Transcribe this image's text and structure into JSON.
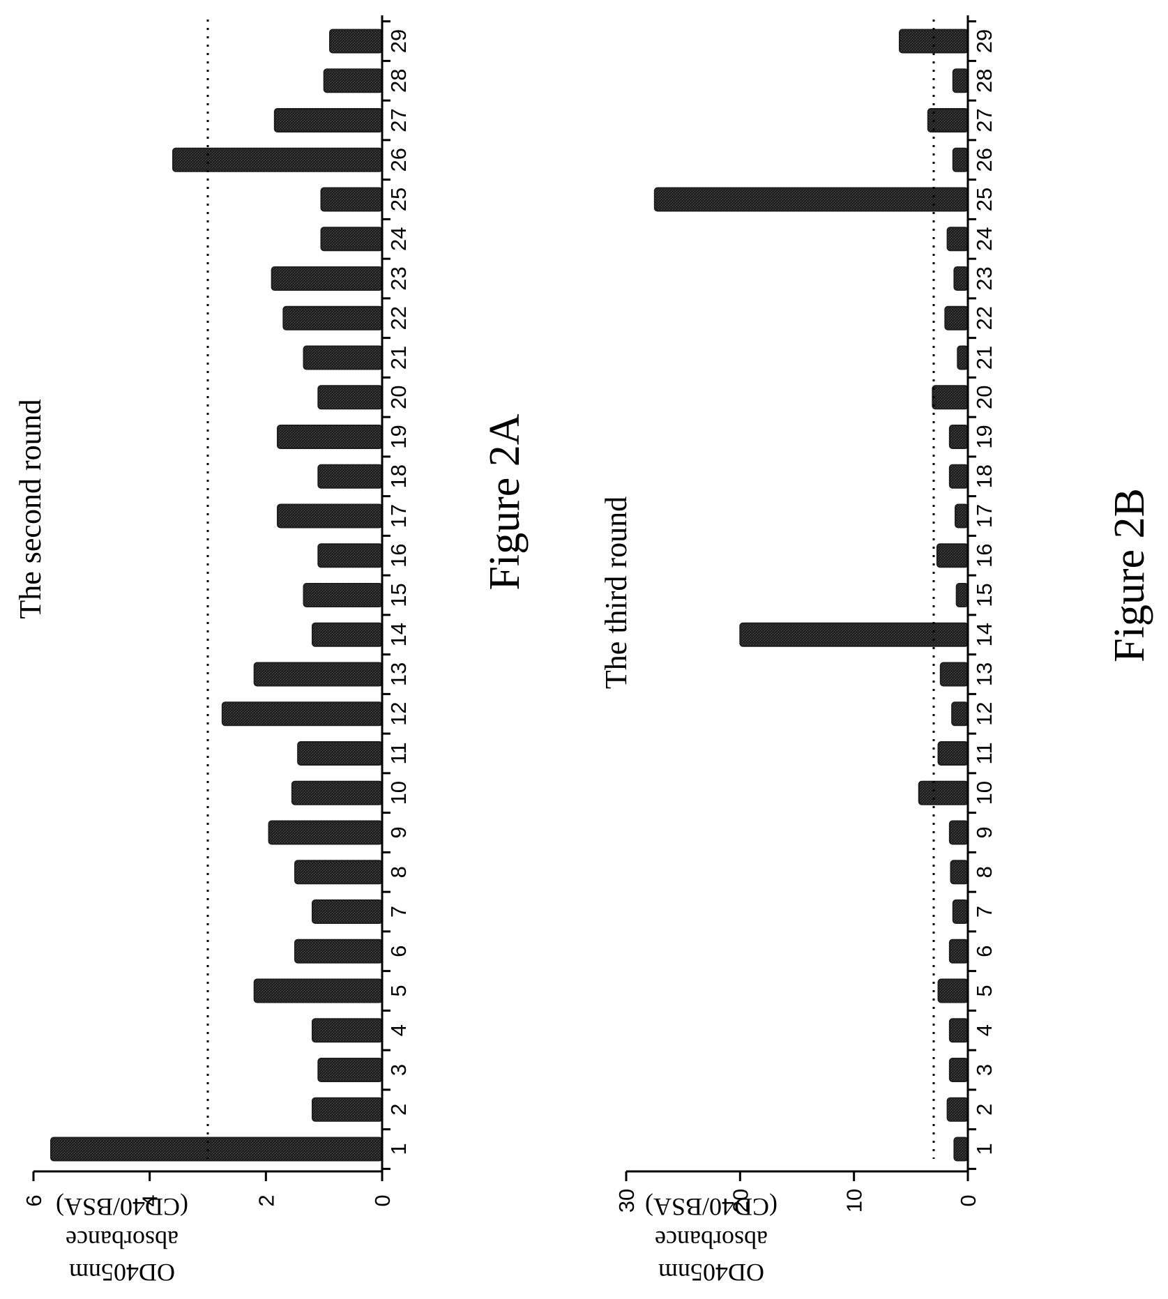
{
  "chart_data": [
    {
      "type": "bar",
      "title": "The second round",
      "caption": "Figure 2A",
      "ylabel_lines": [
        "OD405nm",
        "absorbance",
        "(CD40/BSA)"
      ],
      "categories": [
        "1",
        "2",
        "3",
        "4",
        "5",
        "6",
        "7",
        "8",
        "9",
        "10",
        "11",
        "12",
        "13",
        "14",
        "15",
        "16",
        "17",
        "18",
        "19",
        "20",
        "21",
        "22",
        "23",
        "24",
        "25",
        "26",
        "27",
        "28",
        "29"
      ],
      "values": [
        5.7,
        1.2,
        1.1,
        1.2,
        2.2,
        1.5,
        1.2,
        1.5,
        1.95,
        1.55,
        1.45,
        2.75,
        2.2,
        1.2,
        1.35,
        1.1,
        1.8,
        1.1,
        1.8,
        1.1,
        1.35,
        1.7,
        1.9,
        1.05,
        1.05,
        3.6,
        1.85,
        1.0,
        0.9
      ],
      "ylim": [
        0,
        6
      ],
      "yticks": [
        "0",
        "2",
        "4",
        "6"
      ],
      "threshold": 3,
      "bar_color": "#1e1e1e",
      "orientation": "rotated 90° clockwise"
    },
    {
      "type": "bar",
      "title": "The third round",
      "caption": "Figure 2B",
      "ylabel_lines": [
        "OD405nm",
        "absorbance",
        "(CD40/BSA)"
      ],
      "categories": [
        "1",
        "2",
        "3",
        "4",
        "5",
        "6",
        "7",
        "8",
        "9",
        "10",
        "11",
        "12",
        "13",
        "14",
        "15",
        "16",
        "17",
        "18",
        "19",
        "20",
        "21",
        "22",
        "23",
        "24",
        "25",
        "26",
        "27",
        "28",
        "29"
      ],
      "values": [
        1.2,
        1.8,
        1.6,
        1.6,
        2.6,
        1.6,
        1.3,
        1.5,
        1.6,
        4.3,
        2.6,
        1.4,
        2.4,
        20.0,
        1.0,
        2.7,
        1.1,
        1.6,
        1.6,
        3.1,
        0.9,
        2.0,
        1.2,
        1.8,
        27.5,
        1.3,
        3.5,
        1.3,
        6.0
      ],
      "ylim": [
        0,
        30
      ],
      "yticks": [
        "0",
        "10",
        "20",
        "30"
      ],
      "threshold": 3,
      "bar_color": "#1e1e1e",
      "orientation": "rotated 90° clockwise"
    }
  ]
}
